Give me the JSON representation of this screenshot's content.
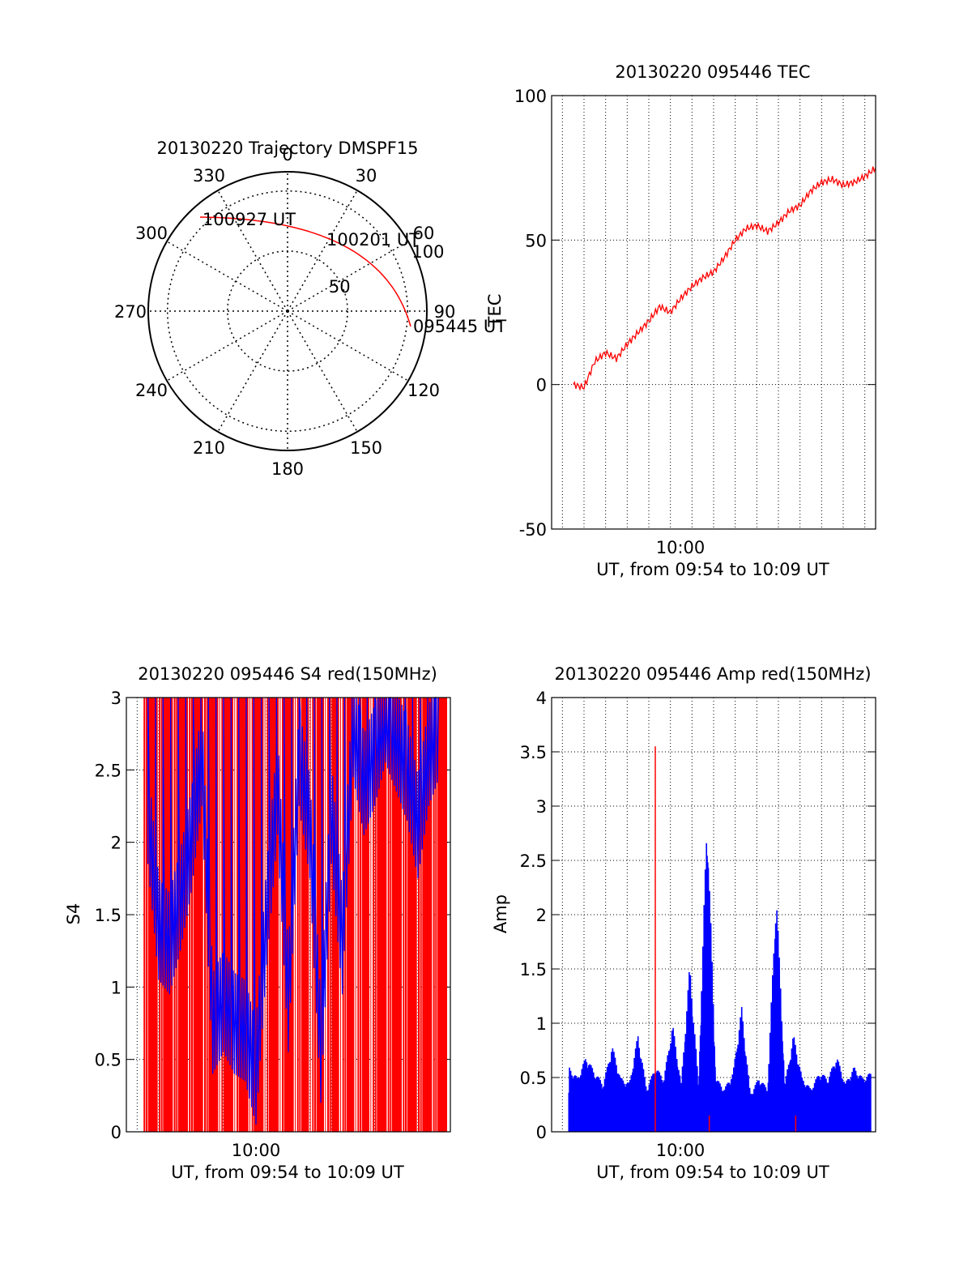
{
  "chart_data": [
    {
      "id": "polar",
      "type": "polar",
      "title": "20130220 Trajectory DMSPF15",
      "angle_labels": [
        "0",
        "30",
        "60",
        "90",
        "120",
        "150",
        "180",
        "210",
        "240",
        "270",
        "300",
        "330"
      ],
      "radial_labels": [
        "50",
        "100"
      ],
      "track": [
        [
          45,
          90
        ],
        [
          60,
          70
        ],
        [
          75,
          58
        ],
        [
          90,
          48
        ],
        [
          105,
          40
        ],
        [
          120,
          35
        ],
        [
          135,
          32
        ],
        [
          150,
          31
        ],
        [
          165,
          32
        ],
        [
          180,
          36
        ],
        [
          195,
          44
        ],
        [
          210,
          55
        ],
        [
          217,
          62
        ]
      ],
      "time_labels": [
        {
          "text": "095445 UT",
          "point": [
            217,
            62
          ]
        },
        {
          "text": "100201 UT",
          "point": [
            45,
            90
          ]
        },
        {
          "text": "100927 UT",
          "point": [
            14,
            116
          ]
        }
      ],
      "track_color": "#ff0000"
    },
    {
      "id": "tec",
      "type": "line",
      "title": "20130220 095446 TEC",
      "xlabel": "UT, from 09:54 to 10:09 UT",
      "ylabel": "TEC",
      "x_tick_label": "10:00",
      "xlim": [
        "09:54",
        "10:09"
      ],
      "ylim": [
        -50,
        100
      ],
      "yticks": [
        -50,
        0,
        50,
        100
      ],
      "series": [
        {
          "color": "#ff0000",
          "x": [
            "09:55",
            "09:55:30",
            "09:56",
            "09:56:30",
            "09:57",
            "09:57:30",
            "09:58",
            "09:58:30",
            "09:59",
            "09:59:30",
            "10:00",
            "10:00:30",
            "10:01",
            "10:01:30",
            "10:02",
            "10:02:30",
            "10:03",
            "10:03:30",
            "10:04",
            "10:04:30",
            "10:05",
            "10:05:30",
            "10:06",
            "10:06:30",
            "10:07",
            "10:07:30",
            "10:08",
            "10:08:30",
            "10:09"
          ],
          "values": [
            0,
            -1,
            8,
            11,
            9,
            14,
            18,
            22,
            27,
            25,
            30,
            34,
            37,
            39,
            44,
            50,
            54,
            55,
            53,
            56,
            60,
            62,
            67,
            70,
            71,
            69,
            70,
            72,
            75
          ]
        }
      ]
    },
    {
      "id": "s4",
      "type": "line",
      "title": "20130220 095446 S4 red(150MHz)",
      "xlabel": "UT, from 09:54 to 10:09 UT",
      "ylabel": "S4",
      "x_tick_label": "10:00",
      "xlim": [
        "09:54",
        "10:09"
      ],
      "ylim": [
        0,
        3
      ],
      "yticks": [
        "0",
        "0.5",
        "1",
        "1.5",
        "2",
        "2.5",
        "3"
      ],
      "series": [
        {
          "color": "#0000ff",
          "x_min": [
            1,
            1.5,
            2,
            2.5,
            3,
            3.5,
            4,
            4.5,
            5,
            5.5,
            6,
            6.5,
            7,
            7.5,
            8,
            8.5,
            9,
            9.5,
            10,
            10.5,
            11,
            11.5,
            12,
            12.5,
            13,
            13.5,
            14,
            14.5
          ],
          "values": [
            2.2,
            1.4,
            1.3,
            1.6,
            2.0,
            2.6,
            0.75,
            0.9,
            0.75,
            0.7,
            0.4,
            1.5,
            2.4,
            0.9,
            2.6,
            2.1,
            0.55,
            2.2,
            1.3,
            2.8,
            2.4,
            2.6,
            2.9,
            2.7,
            2.5,
            2.1,
            2.6,
            2.8
          ]
        },
        {
          "color": "#ff0000",
          "x_min": [
            0.9,
            1.2,
            1.5,
            1.8,
            2.1,
            2.4,
            2.7,
            3.0,
            3.3,
            3.6,
            4.2,
            4.6,
            5.3,
            5.9,
            6.1,
            6.4,
            7.2,
            7.6,
            8.0,
            8.5,
            9.1,
            9.6,
            10.0,
            10.8,
            11.7,
            12.4,
            13.8,
            14.4
          ],
          "values": [
            3,
            3,
            3,
            3,
            3,
            3,
            3,
            3,
            3,
            3,
            3,
            3,
            3,
            3,
            3,
            3,
            3,
            3,
            3,
            3,
            3,
            3,
            3,
            3,
            3,
            3,
            3,
            3
          ]
        }
      ]
    },
    {
      "id": "amp",
      "type": "line",
      "title": "20130220 095446 Amp red(150MHz)",
      "xlabel": "UT, from 09:54 to 10:09 UT",
      "ylabel": "Amp",
      "x_tick_label": "10:00",
      "xlim": [
        "09:54",
        "10:09"
      ],
      "ylim": [
        0,
        4
      ],
      "yticks": [
        "0",
        "0.5",
        "1",
        "1.5",
        "2",
        "2.5",
        "3",
        "3.5",
        "4"
      ],
      "series": [
        {
          "color": "#0000ff",
          "x_min": [
            0.8,
            1.2,
            1.6,
            2.0,
            2.4,
            2.8,
            3.2,
            3.6,
            4.0,
            4.4,
            4.8,
            5.2,
            5.6,
            6.0,
            6.4,
            6.8,
            7.2,
            7.6,
            8.0,
            8.4,
            8.8,
            9.2,
            9.6,
            10.0,
            10.4,
            10.8,
            11.2,
            11.6,
            12.0,
            12.4,
            12.8,
            13.2,
            13.6,
            14.0,
            14.4,
            14.8
          ],
          "values": [
            0.6,
            0.5,
            0.7,
            0.55,
            0.45,
            0.8,
            0.5,
            0.45,
            0.9,
            0.4,
            0.6,
            0.5,
            1.0,
            0.45,
            1.55,
            0.45,
            3.0,
            0.5,
            0.4,
            0.55,
            1.15,
            0.35,
            0.5,
            0.4,
            2.25,
            0.45,
            0.9,
            0.5,
            0.4,
            0.55,
            0.5,
            0.7,
            0.45,
            0.6,
            0.5,
            0.55
          ]
        },
        {
          "color": "#ff0000",
          "spikes": [
            [
              4.8,
              3.55
            ],
            [
              7.3,
              0.15
            ],
            [
              11.3,
              0.15
            ]
          ]
        }
      ]
    }
  ]
}
